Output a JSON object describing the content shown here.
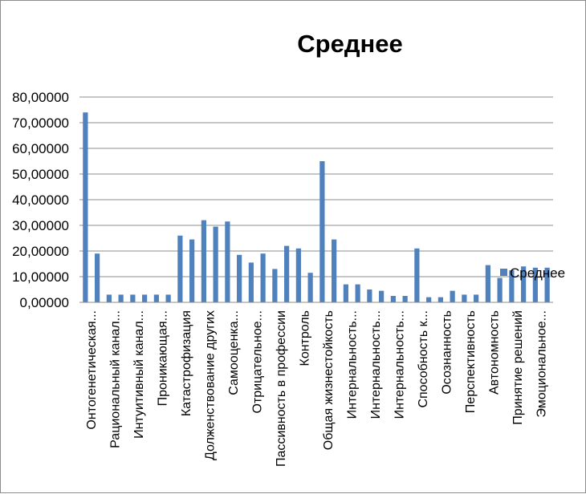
{
  "chart_data": {
    "type": "bar",
    "title": "Среднее",
    "xlabel": "",
    "ylabel": "",
    "ylim": [
      0,
      80
    ],
    "yticks": [
      "0,00000",
      "10,00000",
      "20,00000",
      "30,00000",
      "40,00000",
      "50,00000",
      "60,00000",
      "70,00000",
      "80,00000"
    ],
    "grid": true,
    "legend": "right",
    "bar_color": "#4F81BD",
    "categories": [
      "Онтогенетическая...",
      "",
      "Рациональный канал...",
      "",
      "Интуитивный канал...",
      "",
      "Проникающая...",
      "",
      "Катастрофизация",
      "",
      "Долженствование других",
      "",
      "Самооценка...",
      "",
      "Отрицательное...",
      "",
      "Пассивность в профессии",
      "",
      "Контроль",
      "",
      "Общая жизнестойкость",
      "",
      "Интернальность...",
      "",
      "Интернальность...",
      "",
      "Интернальность...",
      "",
      "Способность к...",
      "",
      "Осознанность",
      "",
      "Перспективность",
      "",
      "Автономность",
      "",
      "Принятие решений",
      "",
      "Эмоциональное...",
      ""
    ],
    "series": [
      {
        "name": "Среднее",
        "values": [
          74.0,
          19.0,
          3.0,
          3.0,
          3.0,
          3.0,
          3.0,
          3.0,
          26.0,
          24.5,
          32.0,
          29.5,
          31.5,
          18.5,
          15.5,
          19.0,
          13.0,
          22.0,
          21.0,
          11.5,
          55.0,
          24.5,
          7.0,
          7.0,
          5.0,
          4.5,
          2.5,
          2.5,
          21.0,
          2.0,
          2.0,
          4.5,
          3.0,
          3.0,
          14.5,
          9.5,
          12.5,
          14.0,
          13.5,
          13.5
        ]
      }
    ]
  }
}
